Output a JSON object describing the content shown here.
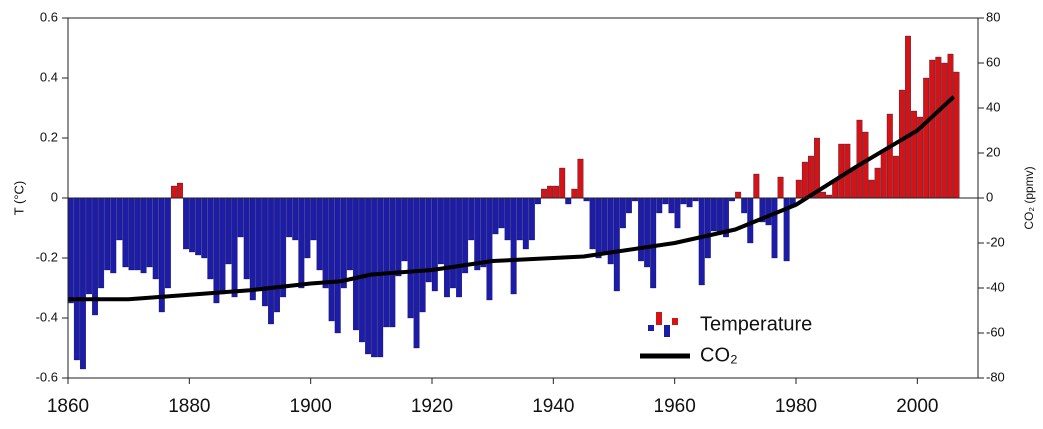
{
  "chart_data": {
    "type": "bar",
    "y_label": "T (°C)",
    "y2_label": "CO₂ (ppmv)",
    "xlim": [
      1860,
      2010
    ],
    "xticks": [
      1860,
      1880,
      1900,
      1920,
      1940,
      1960,
      1980,
      2000
    ],
    "ylim": [
      -0.6,
      0.6
    ],
    "yticks": [
      -0.6,
      -0.4,
      -0.2,
      0,
      0.2,
      0.4,
      0.6
    ],
    "y2lim": [
      -80,
      80
    ],
    "y2ticks": [
      -80,
      -60,
      -40,
      -20,
      0,
      20,
      40,
      60,
      80
    ],
    "series": [
      {
        "name": "Temperature",
        "type": "bar",
        "colors": {
          "positive": "#d41414",
          "negative": "#1c1ca8"
        },
        "x": [
          1860,
          1861,
          1862,
          1863,
          1864,
          1865,
          1866,
          1867,
          1868,
          1869,
          1870,
          1871,
          1872,
          1873,
          1874,
          1875,
          1876,
          1877,
          1878,
          1879,
          1880,
          1881,
          1882,
          1883,
          1884,
          1885,
          1886,
          1887,
          1888,
          1889,
          1890,
          1891,
          1892,
          1893,
          1894,
          1895,
          1896,
          1897,
          1898,
          1899,
          1900,
          1901,
          1902,
          1903,
          1904,
          1905,
          1906,
          1907,
          1908,
          1909,
          1910,
          1911,
          1912,
          1913,
          1914,
          1915,
          1916,
          1917,
          1918,
          1919,
          1920,
          1921,
          1922,
          1923,
          1924,
          1925,
          1926,
          1927,
          1928,
          1929,
          1930,
          1931,
          1932,
          1933,
          1934,
          1935,
          1936,
          1937,
          1938,
          1939,
          1940,
          1941,
          1942,
          1943,
          1944,
          1945,
          1946,
          1947,
          1948,
          1949,
          1950,
          1951,
          1952,
          1953,
          1954,
          1955,
          1956,
          1957,
          1958,
          1959,
          1960,
          1961,
          1962,
          1963,
          1964,
          1965,
          1966,
          1967,
          1968,
          1969,
          1970,
          1971,
          1972,
          1973,
          1974,
          1975,
          1976,
          1977,
          1978,
          1979,
          1980,
          1981,
          1982,
          1983,
          1984,
          1985,
          1986,
          1987,
          1988,
          1989,
          1990,
          1991,
          1992,
          1993,
          1994,
          1995,
          1996,
          1997,
          1998,
          1999,
          2000,
          2001,
          2002,
          2003,
          2004,
          2005,
          2006
        ],
        "values": [
          -0.35,
          -0.54,
          -0.57,
          -0.32,
          -0.39,
          -0.3,
          -0.24,
          -0.25,
          -0.14,
          -0.23,
          -0.24,
          -0.24,
          -0.25,
          -0.23,
          -0.27,
          -0.38,
          -0.3,
          0.04,
          0.05,
          -0.17,
          -0.18,
          -0.19,
          -0.2,
          -0.27,
          -0.35,
          -0.32,
          -0.22,
          -0.33,
          -0.13,
          -0.27,
          -0.34,
          -0.31,
          -0.36,
          -0.42,
          -0.38,
          -0.33,
          -0.13,
          -0.14,
          -0.3,
          -0.2,
          -0.14,
          -0.24,
          -0.3,
          -0.41,
          -0.45,
          -0.3,
          -0.24,
          -0.44,
          -0.48,
          -0.52,
          -0.53,
          -0.53,
          -0.43,
          -0.43,
          -0.26,
          -0.21,
          -0.4,
          -0.5,
          -0.38,
          -0.28,
          -0.31,
          -0.22,
          -0.33,
          -0.3,
          -0.33,
          -0.25,
          -0.14,
          -0.24,
          -0.23,
          -0.34,
          -0.12,
          -0.1,
          -0.14,
          -0.32,
          -0.14,
          -0.17,
          -0.14,
          -0.02,
          0.03,
          0.04,
          0.04,
          0.1,
          -0.02,
          0.03,
          0.13,
          -0.01,
          -0.17,
          -0.2,
          -0.18,
          -0.22,
          -0.31,
          -0.1,
          -0.05,
          -0.01,
          -0.21,
          -0.23,
          -0.3,
          -0.05,
          -0.02,
          -0.05,
          -0.1,
          -0.02,
          -0.03,
          -0.01,
          -0.29,
          -0.2,
          -0.11,
          -0.12,
          -0.13,
          -0.01,
          0.02,
          -0.05,
          -0.15,
          0.08,
          -0.08,
          -0.09,
          -0.2,
          0.07,
          -0.21,
          -0.03,
          0.06,
          0.12,
          0.14,
          0.2,
          0.02,
          0.01,
          0.06,
          0.18,
          0.18,
          0.1,
          0.26,
          0.22,
          0.06,
          0.1,
          0.16,
          0.28,
          0.14,
          0.36,
          0.54,
          0.29,
          0.27,
          0.4,
          0.46,
          0.47,
          0.45,
          0.48,
          0.42
        ]
      },
      {
        "name": "CO₂",
        "type": "line",
        "axis": "y2",
        "color": "#000000",
        "x": [
          1860,
          1870,
          1880,
          1890,
          1900,
          1905,
          1910,
          1920,
          1930,
          1945,
          1950,
          1960,
          1970,
          1980,
          1990,
          2000,
          2006
        ],
        "values": [
          -45,
          -45,
          -43,
          -41,
          -38,
          -37,
          -34,
          -32,
          -28,
          -26,
          -24,
          -20,
          -14,
          -3,
          14,
          30,
          45
        ]
      }
    ]
  }
}
